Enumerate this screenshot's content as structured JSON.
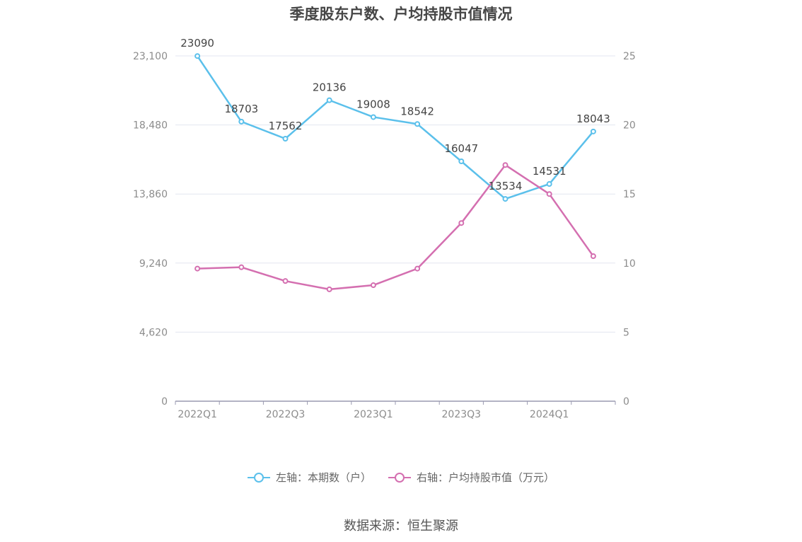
{
  "title": "季度股东户数、户均持股市值情况",
  "source": "数据来源：恒生聚源",
  "colors": {
    "left_series": "#5bc0eb",
    "right_series": "#d46fb0",
    "grid": "#e3e6f0",
    "axis": "#9a9ab0",
    "tick_text": "#8c8c8c",
    "label_text": "#444444"
  },
  "chart_data": {
    "type": "line",
    "categories": [
      "2022Q1",
      "2022Q2",
      "2022Q3",
      "2022Q4",
      "2023Q1",
      "2023Q2",
      "2023Q3",
      "2023Q4",
      "2024Q1",
      "2024Q2"
    ],
    "x_tick_labels": [
      "2022Q1",
      "2022Q3",
      "2023Q1",
      "2023Q3",
      "2024Q1"
    ],
    "left_axis": {
      "ticks": [
        "0",
        "4,620",
        "9,240",
        "13,860",
        "18,480",
        "23,100"
      ],
      "min": 0,
      "max": 23100
    },
    "right_axis": {
      "ticks": [
        "0",
        "5",
        "10",
        "15",
        "20",
        "25"
      ],
      "min": 0,
      "max": 25
    },
    "series": [
      {
        "name": "左轴：本期数（户）",
        "axis": "left",
        "values": [
          23090,
          18703,
          17562,
          20136,
          19008,
          18542,
          16047,
          13534,
          14531,
          18043
        ],
        "labels": [
          "23090",
          "18703",
          "17562",
          "20136",
          "19008",
          "18542",
          "16047",
          "13534",
          "14531",
          "18043"
        ]
      },
      {
        "name": "右轴：户均持股市值（万元）",
        "axis": "right",
        "values": [
          9.6,
          9.7,
          8.7,
          8.1,
          8.4,
          9.6,
          12.9,
          17.1,
          15.0,
          10.5
        ]
      }
    ],
    "grid": true,
    "legend_position": "bottom"
  }
}
